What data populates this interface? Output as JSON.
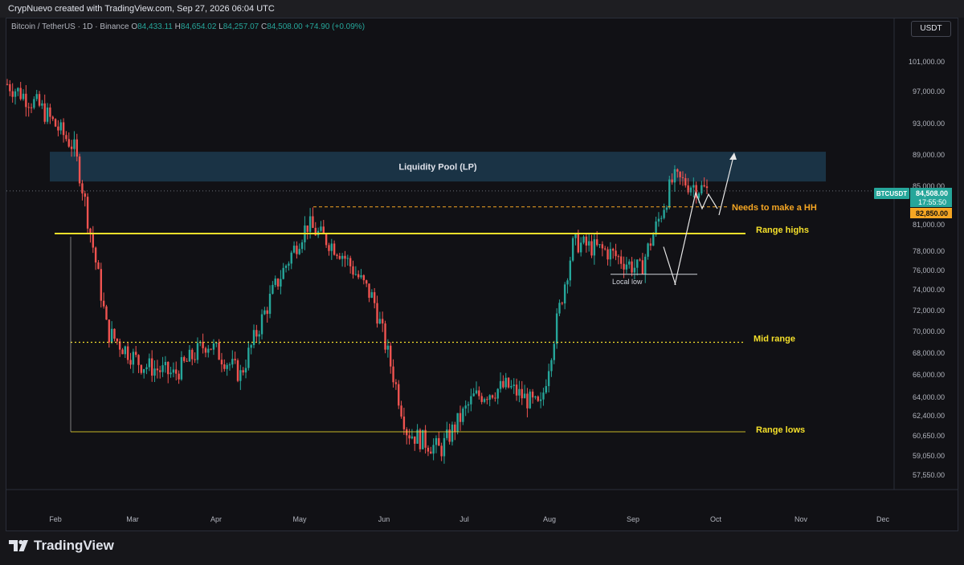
{
  "header": {
    "created_line": "CrypNuevo created with TradingView.com, Sep 27, 2026 06:04 UTC"
  },
  "symbol": {
    "name": "Bitcoin / TetherUS · 1D · Binance",
    "open_label": "O",
    "open": "84,433.11",
    "high_label": "H",
    "high": "84,654.02",
    "low_label": "L",
    "low": "84,257.07",
    "close_label": "C",
    "close": "84,508.00",
    "change": "+74.90 (+0.09%)"
  },
  "currency_button": "USDT",
  "price_scale": {
    "ticks": [
      "101,000.00",
      "97,000.00",
      "93,000.00",
      "89,000.00",
      "85,000.00",
      "81,000.00",
      "78,000.00",
      "76,000.00",
      "74,000.00",
      "72,000.00",
      "70,000.00",
      "68,000.00",
      "66,000.00",
      "64,000.00",
      "62,400.00",
      "60,650.00",
      "59,050.00",
      "57,550.00"
    ],
    "ticker_tag": "BTCUSDT",
    "last_price": "84,508.00",
    "countdown": "17:55:50",
    "level_price": "82,850.00"
  },
  "time_axis": {
    "months": [
      "Feb",
      "Mar",
      "Apr",
      "May",
      "Jun",
      "Jul",
      "Aug",
      "Sep",
      "Oct",
      "Nov",
      "Dec"
    ]
  },
  "annotations": {
    "liquidity_pool": "Liquidity Pool (LP)",
    "needs_hh": "Needs to make a HH",
    "range_highs": "Range highs",
    "mid_range": "Mid range",
    "range_lows": "Range lows",
    "local_low": "Local low"
  },
  "colors": {
    "up": "#26a69a",
    "down": "#ef5350",
    "range_line": "#f5e02b",
    "lp_zone": "#1c3a4d",
    "orange": "#f5a623"
  },
  "chart_data": {
    "type": "candlestick",
    "symbol": "BTCUSDT",
    "interval": "1D",
    "levels": {
      "liquidity_pool": [
        85600,
        89400
      ],
      "needs_hh": 82850,
      "range_highs": 80000,
      "mid_range": 69000,
      "range_lows": 61000,
      "local_low": 75600
    },
    "monthly_path": [
      {
        "month": "Jan",
        "close": 98000
      },
      {
        "month": "Jan",
        "close": 95000
      },
      {
        "month": "Jan",
        "close": 90000
      },
      {
        "month": "Feb",
        "close": 70000
      },
      {
        "month": "Feb",
        "close": 67000
      },
      {
        "month": "Mar",
        "close": 66000
      },
      {
        "month": "Mar",
        "close": 69000
      },
      {
        "month": "Apr",
        "close": 66000
      },
      {
        "month": "Apr",
        "close": 74000
      },
      {
        "month": "May",
        "close": 81000
      },
      {
        "month": "May",
        "close": 78000
      },
      {
        "month": "Jun",
        "close": 73000
      },
      {
        "month": "Jun",
        "close": 61000
      },
      {
        "month": "Jul",
        "close": 59500
      },
      {
        "month": "Jul",
        "close": 64000
      },
      {
        "month": "Aug",
        "close": 65000
      },
      {
        "month": "Aug",
        "close": 63000
      },
      {
        "month": "Aug",
        "close": 79000
      },
      {
        "month": "Sep",
        "close": 78000
      },
      {
        "month": "Sep",
        "close": 76000
      },
      {
        "month": "Sep",
        "close": 86000
      },
      {
        "month": "Sep",
        "close": 84508
      }
    ]
  }
}
